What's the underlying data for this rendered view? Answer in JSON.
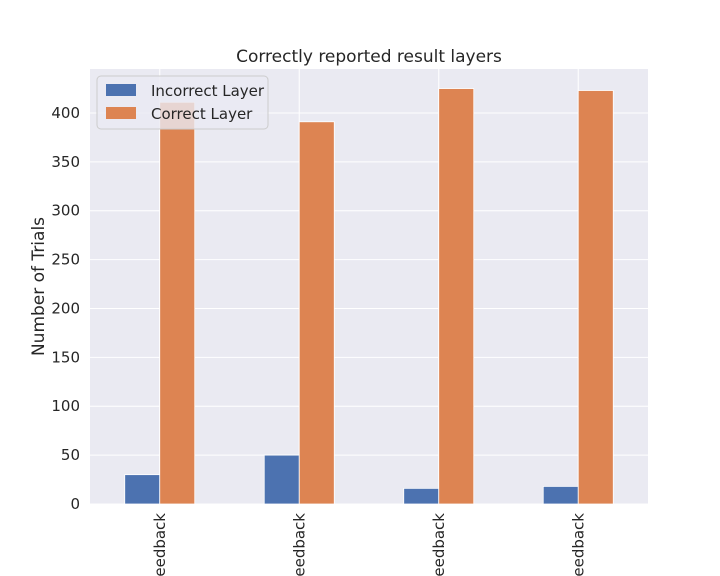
{
  "chart_data": {
    "type": "bar",
    "title": "Correctly reported result layers",
    "xlabel": "",
    "ylabel": "Number of Trials",
    "categories": [
      "eedback",
      "eedback",
      "eedback",
      "eedback"
    ],
    "series": [
      {
        "name": "Incorrect Layer",
        "color": "#4c72b0",
        "values": [
          30,
          50,
          16,
          18
        ]
      },
      {
        "name": "Correct Layer",
        "color": "#dd8452",
        "values": [
          411,
          391,
          425,
          423
        ]
      }
    ],
    "ylim": [
      0,
      445
    ],
    "yticks": [
      0,
      50,
      100,
      150,
      200,
      250,
      300,
      350,
      400
    ],
    "grid": true,
    "legend_position": "top-left"
  }
}
